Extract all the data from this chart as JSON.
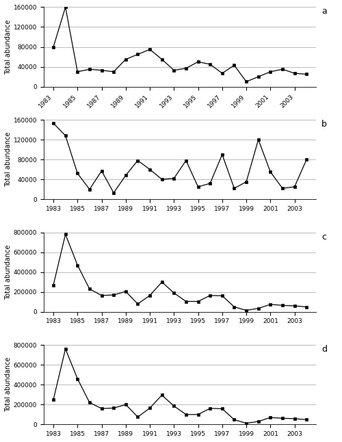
{
  "subplot_a": {
    "label": "a",
    "years": [
      1983,
      1984,
      1985,
      1986,
      1987,
      1988,
      1989,
      1990,
      1991,
      1992,
      1993,
      1994,
      1995,
      1996,
      1997,
      1998,
      1999,
      2000,
      2001,
      2002,
      2003,
      2004
    ],
    "values": [
      80000,
      160000,
      30000,
      35000,
      33000,
      30000,
      55000,
      65000,
      75000,
      55000,
      33000,
      37000,
      50000,
      45000,
      27000,
      43000,
      10000,
      20000,
      30000,
      35000,
      27000,
      25000
    ],
    "ylim": [
      0,
      160000
    ],
    "yticks": [
      0,
      40000,
      80000,
      120000,
      160000
    ],
    "ylabel": "Total abundance"
  },
  "subplot_b": {
    "label": "b",
    "years": [
      1983,
      1984,
      1985,
      1986,
      1987,
      1988,
      1989,
      1990,
      1991,
      1992,
      1993,
      1994,
      1995,
      1996,
      1997,
      1998,
      1999,
      2000,
      2001,
      2002,
      2003,
      2004
    ],
    "values": [
      153000,
      128000,
      52000,
      20000,
      57000,
      13000,
      48000,
      78000,
      60000,
      40000,
      42000,
      78000,
      25000,
      32000,
      90000,
      22000,
      35000,
      120000,
      55000,
      22000,
      25000,
      80000
    ],
    "ylim": [
      0,
      160000
    ],
    "yticks": [
      0,
      40000,
      80000,
      120000,
      160000
    ],
    "ylabel": "Total abundance"
  },
  "subplot_c": {
    "label": "c",
    "years": [
      1983,
      1984,
      1985,
      1986,
      1987,
      1988,
      1989,
      1990,
      1991,
      1992,
      1993,
      1994,
      1995,
      1996,
      1997,
      1998,
      1999,
      2000,
      2001,
      2002,
      2003,
      2004
    ],
    "values": [
      270000,
      780000,
      470000,
      230000,
      165000,
      170000,
      205000,
      80000,
      165000,
      300000,
      190000,
      105000,
      105000,
      165000,
      162000,
      50000,
      15000,
      35000,
      75000,
      65000,
      60000,
      50000
    ],
    "ylim": [
      0,
      800000
    ],
    "yticks": [
      0,
      200000,
      400000,
      600000,
      800000
    ],
    "ylabel": "Total abundance"
  },
  "subplot_d": {
    "label": "d",
    "years": [
      1983,
      1984,
      1985,
      1986,
      1987,
      1988,
      1989,
      1990,
      1991,
      1992,
      1993,
      1994,
      1995,
      1996,
      1997,
      1998,
      1999,
      2000,
      2001,
      2002,
      2003,
      2004
    ],
    "values": [
      250000,
      760000,
      460000,
      220000,
      160000,
      165000,
      200000,
      75000,
      165000,
      295000,
      185000,
      100000,
      100000,
      162000,
      158000,
      48000,
      12000,
      30000,
      70000,
      62000,
      58000,
      48000
    ],
    "ylim": [
      0,
      800000
    ],
    "yticks": [
      0,
      200000,
      400000,
      600000,
      800000
    ],
    "ylabel": "Total abundance"
  },
  "xticks": [
    1983,
    1985,
    1987,
    1989,
    1991,
    1993,
    1995,
    1997,
    1999,
    2001,
    2003
  ],
  "xlim": [
    1982.2,
    2004.8
  ],
  "line_color": "#000000",
  "marker": "s",
  "marker_size": 3.5,
  "bg_color": "#ffffff",
  "grid_color": "#b0b0b0",
  "ylabel_fontsize": 7,
  "tick_fontsize": 6.5,
  "subplot_label_fontsize": 9
}
